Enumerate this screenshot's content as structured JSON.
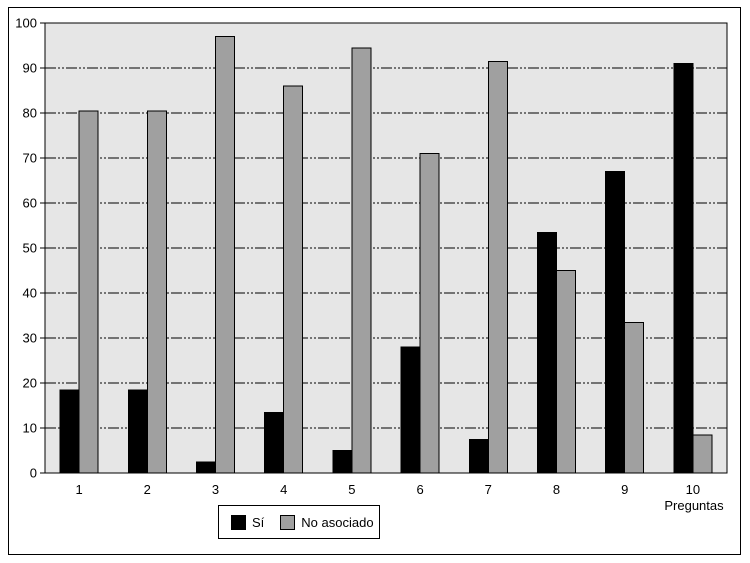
{
  "chart_data": {
    "type": "bar",
    "title": "",
    "xlabel": "Preguntas",
    "ylabel": "",
    "ylim": [
      0,
      100
    ],
    "ytick_step": 10,
    "grid": true,
    "grid_style": "dash-dot-dot",
    "grid_color": "#000000",
    "plot_bg": "#e6e6e6",
    "legend_position": "bottom-center",
    "categories": [
      "1",
      "2",
      "3",
      "4",
      "5",
      "6",
      "7",
      "8",
      "9",
      "10"
    ],
    "series": [
      {
        "name": "Sí",
        "color": "#000000",
        "values": [
          18.5,
          18.5,
          2.5,
          13.5,
          5,
          28,
          7.5,
          53.5,
          67,
          91
        ]
      },
      {
        "name": "No asociado",
        "color": "#a0a0a0",
        "values": [
          80.5,
          80.5,
          97,
          86,
          94.5,
          71,
          91.5,
          45,
          33.5,
          8.5
        ]
      }
    ]
  }
}
